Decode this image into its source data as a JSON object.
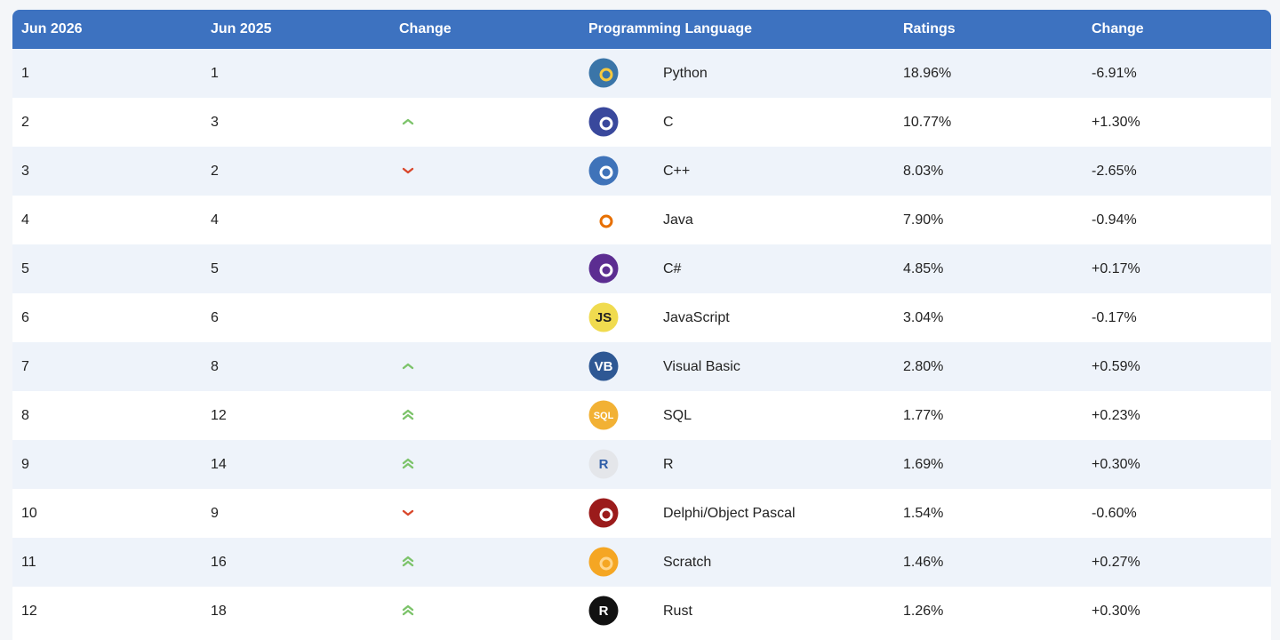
{
  "table": {
    "headers": [
      "Jun 2026",
      "Jun 2025",
      "Change",
      "Programming Language",
      "Ratings",
      "Change"
    ],
    "rows": [
      {
        "rank": 1,
        "previous_rank": 1,
        "language": "Python",
        "logo": {
          "color": "#3a75a8",
          "accent": "#f7c93e"
        },
        "rating": "18.96%",
        "change": "-6.91%"
      },
      {
        "rank": 2,
        "previous_rank": 3,
        "language": "C",
        "logo": {
          "color": "#39489c",
          "accent": "#ffffff"
        },
        "rating": "10.77%",
        "change": "+1.30%"
      },
      {
        "rank": 3,
        "previous_rank": 2,
        "language": "C++",
        "logo": {
          "color": "#3f73b9",
          "accent": "#ffffff"
        },
        "rating": "8.03%",
        "change": "-2.65%"
      },
      {
        "rank": 4,
        "previous_rank": 4,
        "language": "Java",
        "logo": {
          "color": "#ffffff",
          "accent": "#e76f00"
        },
        "rating": "7.90%",
        "change": "-0.94%"
      },
      {
        "rank": 5,
        "previous_rank": 5,
        "language": "C#",
        "logo": {
          "color": "#5c2d91",
          "accent": "#ffffff"
        },
        "rating": "4.85%",
        "change": "+0.17%"
      },
      {
        "rank": 6,
        "previous_rank": 6,
        "language": "JavaScript",
        "logo": {
          "color": "#f0db4f",
          "text": "JS",
          "text_color": "#222222"
        },
        "rating": "3.04%",
        "change": "-0.17%"
      },
      {
        "rank": 7,
        "previous_rank": 8,
        "language": "Visual Basic",
        "logo": {
          "color": "#2e5894",
          "text": "VB",
          "text_color": "#ffffff"
        },
        "rating": "2.80%",
        "change": "+0.59%"
      },
      {
        "rank": 8,
        "previous_rank": 12,
        "language": "SQL",
        "logo": {
          "color": "#f2b134",
          "text": "SQL",
          "text_color": "#ffffff"
        },
        "rating": "1.77%",
        "change": "+0.23%"
      },
      {
        "rank": 9,
        "previous_rank": 14,
        "language": "R",
        "logo": {
          "color": "#e4e6ea",
          "text": "R",
          "text_color": "#2f5ea8"
        },
        "rating": "1.69%",
        "change": "+0.30%"
      },
      {
        "rank": 10,
        "previous_rank": 9,
        "language": "Delphi/Object Pascal",
        "logo": {
          "color": "#9b1b1b",
          "accent": "#ffffff"
        },
        "rating": "1.54%",
        "change": "-0.60%"
      },
      {
        "rank": 11,
        "previous_rank": 16,
        "language": "Scratch",
        "logo": {
          "color": "#f5a623",
          "accent": "#ffd58a"
        },
        "rating": "1.46%",
        "change": "+0.27%"
      },
      {
        "rank": 12,
        "previous_rank": 18,
        "language": "Rust",
        "logo": {
          "color": "#111111",
          "text": "R",
          "text_color": "#ffffff"
        },
        "rating": "1.26%",
        "change": "+0.30%"
      }
    ]
  }
}
